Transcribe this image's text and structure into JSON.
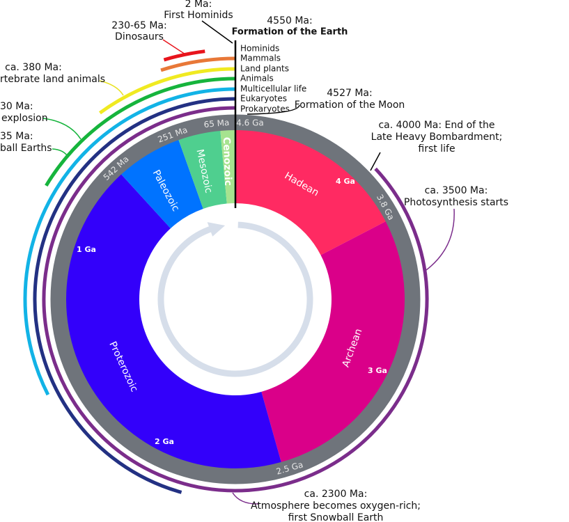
{
  "annotations": [
    {
      "lines": [
        "2 Ma:",
        "First Hominids"
      ]
    },
    {
      "lines": [
        "4550 Ma:",
        "Formation of the Earth"
      ]
    },
    {
      "lines": [
        "230-65 Ma:",
        "Dinosaurs"
      ]
    },
    {
      "lines": [
        "ca. 380 Ma:",
        "rtebrate land animals"
      ]
    },
    {
      "lines": [
        "30 Ma:",
        "explosion"
      ]
    },
    {
      "lines": [
        "35 Ma:",
        "ball Earths"
      ]
    },
    {
      "lines": [
        "4527 Ma:",
        "Formation of the Moon"
      ]
    },
    {
      "lines": [
        "ca. 4000 Ma: End of the",
        "Late Heavy Bombardment;",
        "first life"
      ]
    },
    {
      "lines": [
        "ca. 3500 Ma:",
        "Photosynthesis starts"
      ]
    },
    {
      "lines": [
        "ca. 2300 Ma:",
        "Atmosphere becomes oxygen-rich;",
        "first Snowball Earth"
      ]
    }
  ],
  "lineages": [
    "Hominids",
    "Mammals",
    "Land plants",
    "Animals",
    "Multicellular life",
    "Eukaryotes",
    "Prokaryotes"
  ],
  "eras": [
    "Hadean",
    "Archean",
    "Proterozoic",
    "Paleozoic",
    "Mesozoic",
    "Cenozoic"
  ],
  "boundary_labels": [
    "4.6 Ga",
    "3.8 Ga",
    "2.5 Ga",
    "542 Ma",
    "251 Ma",
    "65 Ma"
  ],
  "scale_labels": [
    "4 Ga",
    "3 Ga",
    "2 Ga",
    "1 Ga"
  ]
}
